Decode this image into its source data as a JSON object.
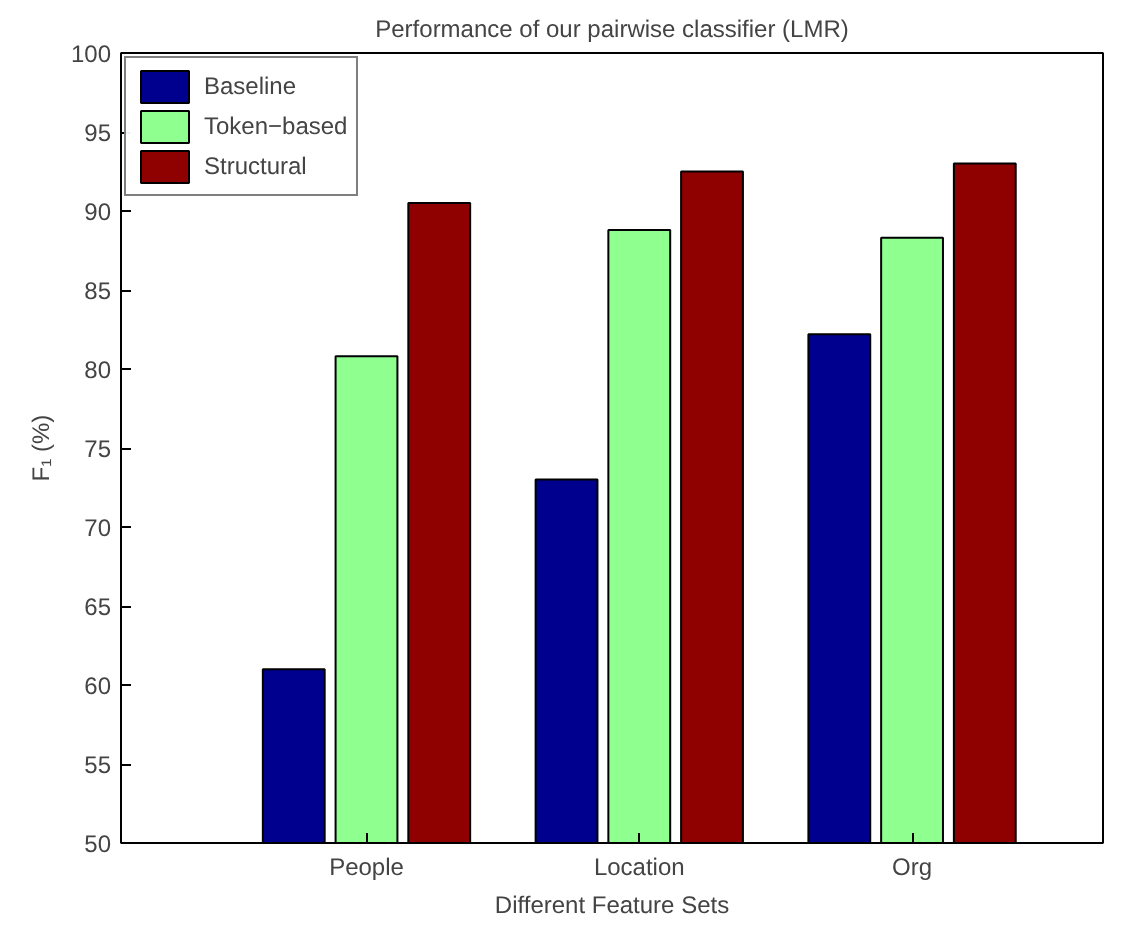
{
  "chart_data": {
    "type": "bar",
    "title": "Performance of our pairwise classifier (LMR)",
    "xlabel": "Different Feature Sets",
    "ylabel": "F₁ (%)",
    "categories": [
      "People",
      "Location",
      "Org"
    ],
    "series": [
      {
        "name": "Baseline",
        "color": "#00008f",
        "values": [
          61,
          73,
          82.2
        ]
      },
      {
        "name": "Token−based",
        "color": "#8fff8f",
        "values": [
          80.8,
          88.8,
          88.3
        ]
      },
      {
        "name": "Structural",
        "color": "#8f0000",
        "values": [
          90.5,
          92.5,
          93
        ]
      }
    ],
    "ylim": [
      50,
      100
    ],
    "yticks": [
      50,
      55,
      60,
      65,
      70,
      75,
      80,
      85,
      90,
      95,
      100
    ],
    "grid": false,
    "legend": "top left"
  }
}
